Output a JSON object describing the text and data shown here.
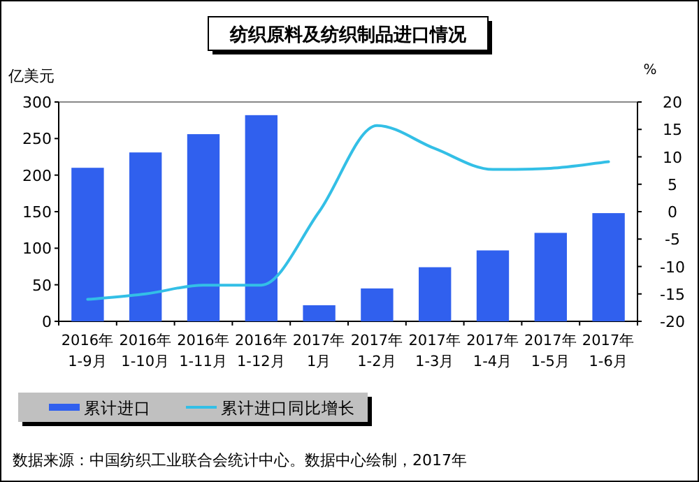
{
  "chart_data": {
    "type": "bar",
    "title": "纺织原料及纺织制品进口情况",
    "ylabel": "亿美元",
    "y2label": "%",
    "categories": [
      "2016年\n1-9月",
      "2016年\n1-10月",
      "2016年\n1-11月",
      "2016年\n1-12月",
      "2017年\n1月",
      "2017年\n1-2月",
      "2017年\n1-3月",
      "2017年\n1-4月",
      "2017年\n1-5月",
      "2017年\n1-6月"
    ],
    "series": [
      {
        "name": "累计进口",
        "color": "#3060ee",
        "values": [
          210,
          231,
          256,
          282,
          22,
          45,
          74,
          97,
          121,
          148
        ]
      },
      {
        "name": "累计进口同比增长",
        "type": "line",
        "axis": "y2",
        "color": "#33bfe6",
        "values": [
          -16,
          -15,
          -13.4,
          -13.4,
          0,
          15.7,
          11.5,
          7.7,
          7.9,
          9.1
        ]
      }
    ],
    "ylim": [
      0,
      300
    ],
    "yticks": [
      0,
      50,
      100,
      150,
      200,
      250,
      300
    ],
    "y2lim": [
      -20,
      20
    ],
    "y2ticks": [
      -20,
      -15,
      -10,
      -5,
      0,
      5,
      10,
      15,
      20
    ],
    "legend": "bottom",
    "annotations": [
      "数据来源：中国纺织工业联合会统计中心。数据中心绘制，2017年"
    ]
  }
}
